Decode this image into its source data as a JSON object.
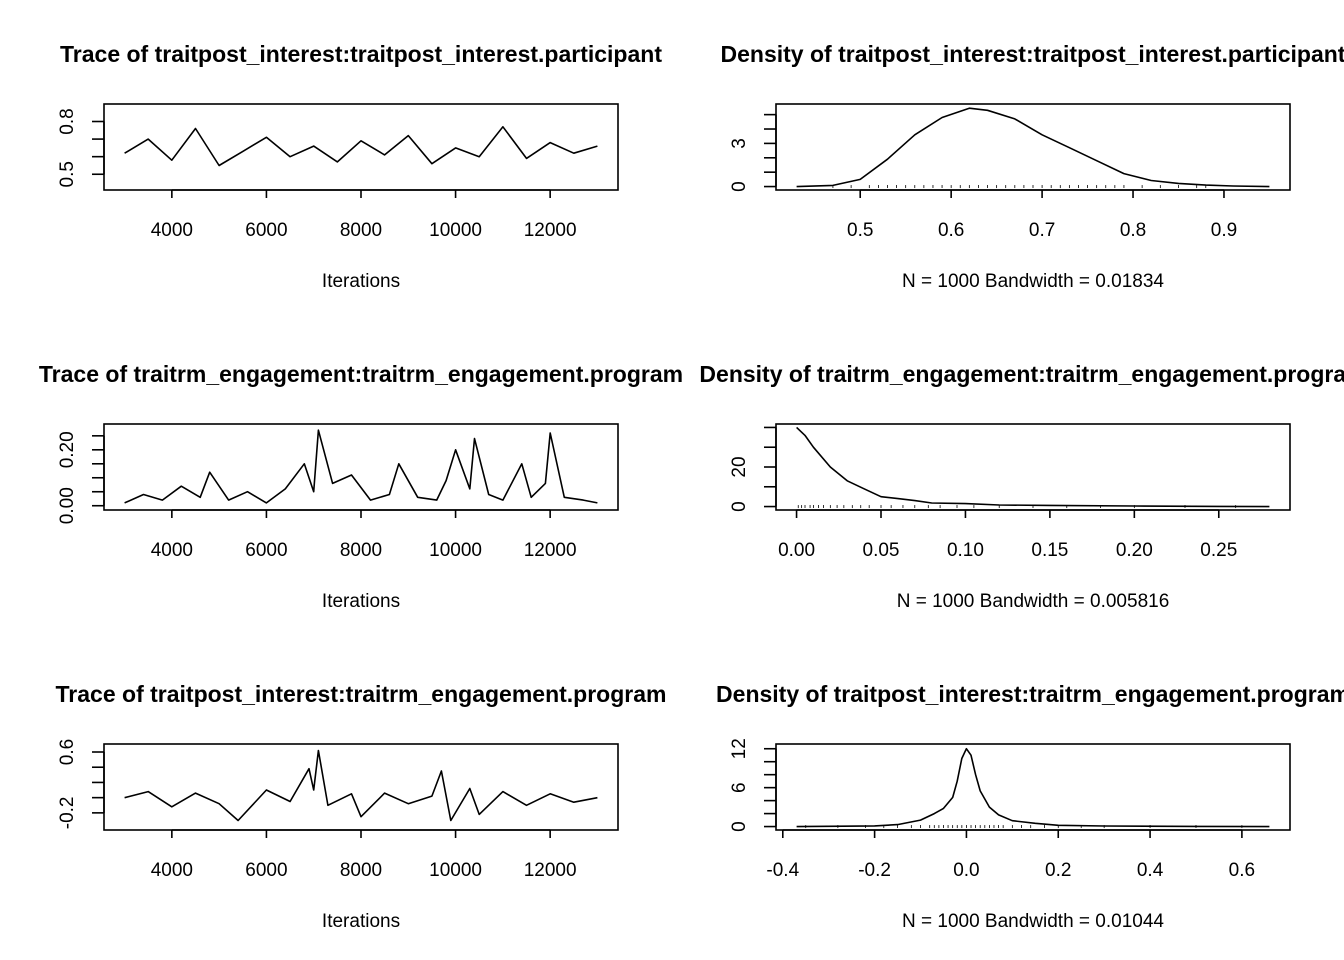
{
  "chart_data": [
    {
      "type": "line",
      "kind": "trace",
      "title": "Trace of traitpost_interest:traitpost_interest.participant",
      "xlabel": "Iterations",
      "xlim": [
        3000,
        13000
      ],
      "ylim": [
        0.43,
        0.88
      ],
      "xticks": [
        4000,
        6000,
        8000,
        10000,
        12000
      ],
      "xtick_labels": [
        "4000",
        "6000",
        "8000",
        "10000",
        "12000"
      ],
      "yticks": [
        0.5,
        0.6,
        0.7,
        0.8
      ],
      "ytick_labels": [
        "0.5",
        "",
        "",
        "0.8"
      ],
      "series": [
        {
          "x": [
            3000,
            3500,
            4000,
            4500,
            5000,
            5500,
            6000,
            6500,
            7000,
            7500,
            8000,
            8500,
            9000,
            9500,
            10000,
            10500,
            11000,
            11500,
            12000,
            12500,
            13000
          ],
          "y": [
            0.62,
            0.7,
            0.58,
            0.76,
            0.55,
            0.63,
            0.71,
            0.6,
            0.66,
            0.57,
            0.69,
            0.61,
            0.72,
            0.56,
            0.65,
            0.6,
            0.77,
            0.59,
            0.68,
            0.62,
            0.66
          ]
        }
      ]
    },
    {
      "type": "line",
      "kind": "density",
      "title": "Density of traitpost_interest:traitpost_interest.participant",
      "xlabel": "N = 1000   Bandwidth = 0.01834",
      "xlim": [
        0.43,
        0.95
      ],
      "ylim": [
        0,
        5.5
      ],
      "xticks": [
        0.5,
        0.6,
        0.7,
        0.8,
        0.9
      ],
      "xtick_labels": [
        "0.5",
        "0.6",
        "0.7",
        "0.8",
        "0.9"
      ],
      "yticks": [
        0,
        1,
        2,
        3,
        4,
        5
      ],
      "ytick_labels": [
        "0",
        "",
        "",
        "3",
        "",
        ""
      ],
      "series": [
        {
          "x": [
            0.43,
            0.47,
            0.5,
            0.53,
            0.56,
            0.59,
            0.62,
            0.64,
            0.67,
            0.7,
            0.73,
            0.76,
            0.79,
            0.82,
            0.85,
            0.88,
            0.91,
            0.95
          ],
          "y": [
            0.0,
            0.08,
            0.5,
            1.9,
            3.6,
            4.8,
            5.45,
            5.3,
            4.7,
            3.6,
            2.7,
            1.8,
            0.9,
            0.42,
            0.22,
            0.1,
            0.04,
            0.0
          ]
        }
      ],
      "rug": [
        0.47,
        0.49,
        0.51,
        0.52,
        0.53,
        0.54,
        0.55,
        0.56,
        0.57,
        0.58,
        0.59,
        0.6,
        0.61,
        0.62,
        0.63,
        0.64,
        0.65,
        0.66,
        0.67,
        0.68,
        0.69,
        0.7,
        0.71,
        0.72,
        0.73,
        0.74,
        0.75,
        0.76,
        0.77,
        0.78,
        0.79,
        0.81,
        0.83,
        0.85,
        0.87,
        0.88
      ]
    },
    {
      "type": "line",
      "kind": "trace",
      "title": "Trace of traitrm_engagement:traitrm_engagement.program",
      "xlabel": "Iterations",
      "xlim": [
        3000,
        13000
      ],
      "ylim": [
        -0.003,
        0.28
      ],
      "xticks": [
        4000,
        6000,
        8000,
        10000,
        12000
      ],
      "xtick_labels": [
        "4000",
        "6000",
        "8000",
        "10000",
        "12000"
      ],
      "yticks": [
        0.0,
        0.05,
        0.1,
        0.15,
        0.2,
        0.25
      ],
      "ytick_labels": [
        "0.00",
        "",
        "",
        "",
        "0.20",
        ""
      ],
      "series": [
        {
          "x": [
            3000,
            3400,
            3800,
            4200,
            4600,
            4800,
            5200,
            5600,
            6000,
            6400,
            6800,
            7000,
            7100,
            7400,
            7800,
            8200,
            8600,
            8800,
            9200,
            9600,
            9800,
            10000,
            10300,
            10400,
            10700,
            11000,
            11400,
            11600,
            11900,
            12000,
            12300,
            12700,
            13000
          ],
          "y": [
            0.01,
            0.04,
            0.02,
            0.07,
            0.03,
            0.12,
            0.02,
            0.05,
            0.01,
            0.06,
            0.15,
            0.05,
            0.27,
            0.08,
            0.11,
            0.02,
            0.04,
            0.15,
            0.03,
            0.02,
            0.09,
            0.2,
            0.06,
            0.24,
            0.04,
            0.02,
            0.15,
            0.03,
            0.08,
            0.26,
            0.03,
            0.02,
            0.01
          ]
        }
      ]
    },
    {
      "type": "line",
      "kind": "density",
      "title": "Density of traitrm_engagement:traitrm_engagement.program",
      "xlabel": "N = 1000   Bandwidth = 0.005816",
      "xlim": [
        0.0,
        0.28
      ],
      "ylim": [
        0,
        40
      ],
      "xticks": [
        0.0,
        0.05,
        0.1,
        0.15,
        0.2,
        0.25
      ],
      "xtick_labels": [
        "0.00",
        "0.05",
        "0.10",
        "0.15",
        "0.20",
        "0.25"
      ],
      "yticks": [
        0,
        10,
        20,
        30,
        40
      ],
      "ytick_labels": [
        "0",
        "",
        "20",
        "",
        ""
      ],
      "series": [
        {
          "x": [
            0.0,
            0.005,
            0.01,
            0.02,
            0.03,
            0.04,
            0.05,
            0.06,
            0.07,
            0.08,
            0.1,
            0.12,
            0.15,
            0.2,
            0.25,
            0.28
          ],
          "y": [
            40,
            36,
            30,
            20,
            13,
            9,
            5,
            4,
            3,
            1.8,
            1.5,
            0.8,
            0.6,
            0.3,
            0.1,
            0.0
          ]
        }
      ],
      "rug": [
        0.001,
        0.003,
        0.005,
        0.008,
        0.01,
        0.013,
        0.016,
        0.02,
        0.024,
        0.028,
        0.033,
        0.038,
        0.043,
        0.05,
        0.056,
        0.063,
        0.07,
        0.078,
        0.085,
        0.095,
        0.105,
        0.12,
        0.14,
        0.16,
        0.18,
        0.2,
        0.23,
        0.26
      ]
    },
    {
      "type": "line",
      "kind": "trace",
      "title": "Trace of traitpost_interest:traitrm_engagement.program",
      "xlabel": "Iterations",
      "xlim": [
        3000,
        13000
      ],
      "ylim": [
        -0.38,
        0.66
      ],
      "xticks": [
        4000,
        6000,
        8000,
        10000,
        12000
      ],
      "xtick_labels": [
        "4000",
        "6000",
        "8000",
        "10000",
        "12000"
      ],
      "yticks": [
        -0.2,
        0.0,
        0.2,
        0.4,
        0.6
      ],
      "ytick_labels": [
        "-0.2",
        "",
        "",
        "",
        "0.6"
      ],
      "series": [
        {
          "x": [
            3000,
            3500,
            4000,
            4500,
            5000,
            5400,
            6000,
            6500,
            6900,
            7000,
            7100,
            7300,
            7800,
            8000,
            8500,
            9000,
            9500,
            9700,
            9900,
            10300,
            10500,
            11000,
            11500,
            12000,
            12500,
            13000
          ],
          "y": [
            0.0,
            0.08,
            -0.12,
            0.06,
            -0.08,
            -0.3,
            0.1,
            -0.05,
            0.38,
            0.1,
            0.62,
            -0.1,
            0.05,
            -0.25,
            0.06,
            -0.08,
            0.02,
            0.35,
            -0.3,
            0.12,
            -0.22,
            0.08,
            -0.1,
            0.05,
            -0.06,
            0.0
          ]
        }
      ]
    },
    {
      "type": "line",
      "kind": "density",
      "title": "Density of traitpost_interest:traitrm_engagement.program",
      "xlabel": "N = 1000   Bandwidth = 0.01044",
      "xlim": [
        -0.37,
        0.66
      ],
      "ylim": [
        0,
        12.2
      ],
      "xticks": [
        -0.4,
        -0.2,
        0.0,
        0.2,
        0.4,
        0.6
      ],
      "xtick_labels": [
        "-0.4",
        "-0.2",
        "0.0",
        "0.2",
        "0.4",
        "0.6"
      ],
      "yticks": [
        0,
        2,
        4,
        6,
        8,
        10,
        12
      ],
      "ytick_labels": [
        "0",
        "",
        "",
        "6",
        "",
        "",
        "12"
      ],
      "series": [
        {
          "x": [
            -0.37,
            -0.2,
            -0.15,
            -0.1,
            -0.07,
            -0.05,
            -0.03,
            -0.02,
            -0.01,
            0.0,
            0.01,
            0.02,
            0.03,
            0.05,
            0.07,
            0.1,
            0.15,
            0.2,
            0.3,
            0.5,
            0.66
          ],
          "y": [
            0.0,
            0.1,
            0.3,
            1.0,
            2.0,
            2.8,
            4.5,
            7.0,
            10.5,
            12.0,
            11.0,
            8.0,
            5.5,
            3.0,
            1.8,
            0.9,
            0.5,
            0.2,
            0.08,
            0.02,
            0.0
          ]
        }
      ],
      "rug": [
        -0.35,
        -0.28,
        -0.22,
        -0.18,
        -0.15,
        -0.12,
        -0.1,
        -0.08,
        -0.07,
        -0.06,
        -0.05,
        -0.04,
        -0.03,
        -0.02,
        -0.01,
        0.0,
        0.01,
        0.02,
        0.03,
        0.04,
        0.05,
        0.06,
        0.07,
        0.08,
        0.1,
        0.12,
        0.14,
        0.17,
        0.2,
        0.25,
        0.3,
        0.4,
        0.5,
        0.6
      ]
    }
  ]
}
